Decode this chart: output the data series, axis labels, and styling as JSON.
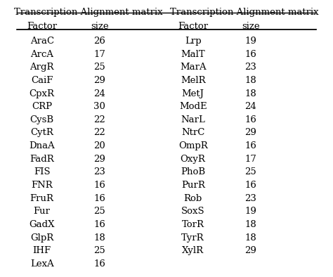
{
  "title_left": "Transcription Alignment matrix",
  "title_right": "Transcription Alignment matrix",
  "col_headers": [
    "Factor",
    "size",
    "Factor",
    "size"
  ],
  "left_data": [
    [
      "AraC",
      26
    ],
    [
      "ArcA",
      17
    ],
    [
      "ArgR",
      25
    ],
    [
      "CaiF",
      29
    ],
    [
      "CpxR",
      24
    ],
    [
      "CRP",
      30
    ],
    [
      "CysB",
      22
    ],
    [
      "CytR",
      22
    ],
    [
      "DnaA",
      20
    ],
    [
      "FadR",
      29
    ],
    [
      "FIS",
      23
    ],
    [
      "FNR",
      16
    ],
    [
      "FruR",
      16
    ],
    [
      "Fur",
      25
    ],
    [
      "GadX",
      16
    ],
    [
      "GlpR",
      18
    ],
    [
      "IHF",
      25
    ],
    [
      "LexA",
      16
    ]
  ],
  "right_data": [
    [
      "Lrp",
      19
    ],
    [
      "MalT",
      16
    ],
    [
      "MarA",
      23
    ],
    [
      "MelR",
      18
    ],
    [
      "MetJ",
      18
    ],
    [
      "ModE",
      24
    ],
    [
      "NarL",
      16
    ],
    [
      "NtrC",
      29
    ],
    [
      "OmpR",
      16
    ],
    [
      "OxyR",
      17
    ],
    [
      "PhoB",
      25
    ],
    [
      "PurR",
      16
    ],
    [
      "Rob",
      23
    ],
    [
      "SoxS",
      19
    ],
    [
      "TorR",
      18
    ],
    [
      "TyrR",
      18
    ],
    [
      "XylR",
      29
    ]
  ],
  "background_color": "#ffffff",
  "text_color": "#000000",
  "font_size": 9.5,
  "header_font_size": 9.5,
  "title_font_size": 9.5
}
